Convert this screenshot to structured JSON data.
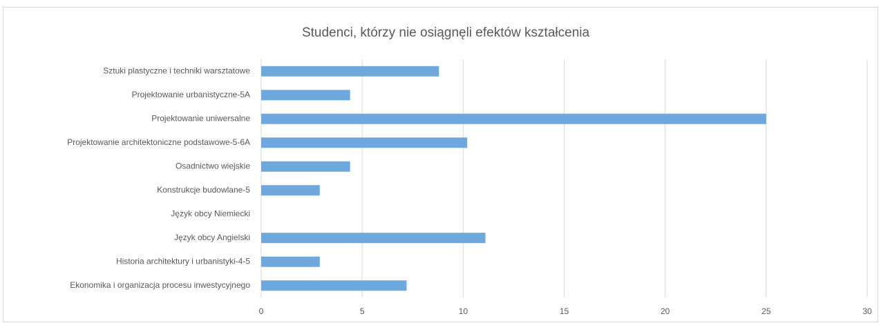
{
  "chart_data": {
    "type": "bar",
    "orientation": "horizontal",
    "title": "Studenci, którzy nie osiągnęli efektów kształcenia",
    "categories": [
      "Sztuki plastyczne i techniki warsztatowe",
      "Projektowanie urbanistyczne-5A",
      "Projektowanie uniwersalne",
      "Projektowanie architektoniczne podstawowe-5-6A",
      "Osadnictwo wiejskie",
      "Konstrukcje budowlane-5",
      "Język obcy Niemiecki",
      "Język obcy Angielski",
      "Historia architektury i urbanistyki-4-5",
      "Ekonomika i organizacja procesu inwestycyjnego"
    ],
    "values": [
      8.8,
      4.4,
      25,
      10.2,
      4.4,
      2.9,
      0,
      11.1,
      2.9,
      7.2
    ],
    "color": "#6fa8dc",
    "xlim": [
      0,
      30
    ],
    "xticks": [
      0,
      5,
      10,
      15,
      20,
      25,
      30
    ],
    "grid": true
  }
}
